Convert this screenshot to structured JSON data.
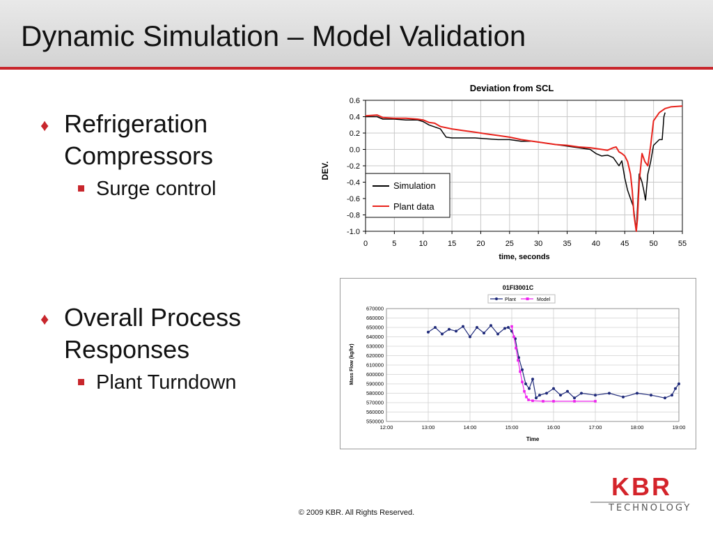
{
  "slide": {
    "title": "Dynamic Simulation – Model Validation",
    "bullets": [
      {
        "text": "Refrigeration Compressors",
        "sub": "Surge control"
      },
      {
        "text": "Overall Process Responses",
        "sub": "Plant Turndown"
      }
    ],
    "bullet_marker": "♦",
    "footer": "© 2009 KBR. All Rights Reserved.",
    "logo": {
      "text": "KBR",
      "subtext": "TECHNOLOGY"
    }
  },
  "colors": {
    "accent": "#c8262c",
    "plant_red": "#e8221b",
    "sim_black": "#000000",
    "navy": "#1f2a7a",
    "magenta": "#ee22ee"
  },
  "chart_data": [
    {
      "type": "line",
      "title": "Deviation from SCL",
      "xlabel": "time, seconds",
      "ylabel": "DEV.",
      "xlim": [
        0,
        55
      ],
      "ylim": [
        -1.0,
        0.6
      ],
      "xticks": [
        "0",
        "5",
        "10",
        "15",
        "20",
        "25",
        "30",
        "35",
        "40",
        "45",
        "50",
        "55"
      ],
      "yticks": [
        "0.6",
        "0.4",
        "0.2",
        "0.0",
        "-0.2",
        "-0.4",
        "-0.6",
        "-0.8",
        "-1.0"
      ],
      "grid": true,
      "legend": "lower-left",
      "series": [
        {
          "name": "Simulation",
          "color": "#000000",
          "x": [
            0,
            2,
            3,
            5,
            7,
            9,
            10,
            11,
            13,
            14,
            15,
            17,
            19,
            21,
            23,
            25,
            27,
            29,
            31,
            33,
            35,
            37,
            39,
            40,
            41,
            42,
            43,
            44,
            44.5,
            45,
            45.5,
            46,
            46.5,
            47,
            47.5,
            48,
            48.3,
            48.6,
            49,
            49.5,
            50,
            51,
            51.5,
            51.8,
            52
          ],
          "y": [
            0.4,
            0.4,
            0.37,
            0.37,
            0.36,
            0.36,
            0.34,
            0.3,
            0.25,
            0.15,
            0.14,
            0.14,
            0.14,
            0.13,
            0.12,
            0.12,
            0.1,
            0.1,
            0.08,
            0.06,
            0.04,
            0.02,
            0.0,
            -0.05,
            -0.08,
            -0.07,
            -0.1,
            -0.2,
            -0.14,
            -0.35,
            -0.5,
            -0.6,
            -0.7,
            -1.0,
            -0.3,
            -0.4,
            -0.5,
            -0.62,
            -0.3,
            -0.15,
            0.05,
            0.12,
            0.12,
            0.4,
            0.45
          ]
        },
        {
          "name": "Plant data",
          "color": "#e8221b",
          "x": [
            0,
            2,
            3,
            5,
            7,
            9,
            10,
            11,
            12,
            13,
            15,
            17,
            19,
            21,
            23,
            25,
            27,
            29,
            31,
            33,
            35,
            37,
            39,
            40,
            41,
            42,
            43,
            43.5,
            44,
            44.5,
            45,
            45.5,
            46,
            46.3,
            46.6,
            47,
            47.2,
            47.5,
            48,
            48.5,
            49,
            49.5,
            50,
            51,
            52,
            53,
            55
          ],
          "y": [
            0.41,
            0.42,
            0.39,
            0.38,
            0.38,
            0.37,
            0.36,
            0.33,
            0.32,
            0.28,
            0.25,
            0.23,
            0.21,
            0.19,
            0.17,
            0.15,
            0.12,
            0.1,
            0.08,
            0.06,
            0.05,
            0.03,
            0.02,
            0.01,
            0.0,
            -0.01,
            0.02,
            0.03,
            -0.03,
            -0.05,
            -0.08,
            -0.15,
            -0.3,
            -0.5,
            -0.8,
            -1.0,
            -0.85,
            -0.4,
            -0.05,
            -0.15,
            -0.2,
            0.05,
            0.35,
            0.45,
            0.5,
            0.52,
            0.53
          ]
        }
      ]
    },
    {
      "type": "line",
      "title": "01FI3001C",
      "xlabel": "Time",
      "ylabel": "Mass Flow (kg/hr)",
      "ylim": [
        550000,
        670000
      ],
      "xlim": [
        "12:00",
        "19:00"
      ],
      "xticks": [
        "12:00",
        "13:00",
        "14:00",
        "15:00",
        "16:00",
        "17:00",
        "18:00",
        "19:00"
      ],
      "yticks": [
        "670000",
        "660000",
        "650000",
        "640000",
        "630000",
        "620000",
        "610000",
        "600000",
        "590000",
        "580000",
        "570000",
        "560000",
        "550000"
      ],
      "grid": true,
      "legend": "top",
      "series": [
        {
          "name": "Plant",
          "color": "#1f2a7a",
          "marker": "circle",
          "x": [
            "13:00",
            "13:10",
            "13:20",
            "13:30",
            "13:40",
            "13:50",
            "14:00",
            "14:10",
            "14:20",
            "14:30",
            "14:40",
            "14:50",
            "14:55",
            "15:00",
            "15:05",
            "15:10",
            "15:15",
            "15:20",
            "15:25",
            "15:30",
            "15:35",
            "15:40",
            "15:50",
            "16:00",
            "16:10",
            "16:20",
            "16:30",
            "16:40",
            "17:00",
            "17:20",
            "17:40",
            "18:00",
            "18:20",
            "18:40",
            "18:50",
            "18:55",
            "19:00"
          ],
          "y": [
            645000,
            650000,
            643000,
            648000,
            646000,
            651000,
            640000,
            650000,
            644000,
            652000,
            643000,
            649000,
            650000,
            646000,
            638000,
            618000,
            605000,
            590000,
            585000,
            595000,
            575000,
            578000,
            580000,
            585000,
            578000,
            582000,
            575000,
            580000,
            578000,
            580000,
            576000,
            580000,
            578000,
            575000,
            578000,
            585000,
            590000
          ]
        },
        {
          "name": "Model",
          "color": "#ee22ee",
          "marker": "square",
          "x": [
            "15:00",
            "15:03",
            "15:06",
            "15:09",
            "15:12",
            "15:15",
            "15:18",
            "15:21",
            "15:24",
            "15:30",
            "15:45",
            "16:00",
            "16:30",
            "17:00"
          ],
          "y": [
            651000,
            640000,
            628000,
            615000,
            603000,
            592000,
            582000,
            576000,
            573000,
            572000,
            571500,
            571500,
            571500,
            571500
          ]
        }
      ]
    }
  ]
}
